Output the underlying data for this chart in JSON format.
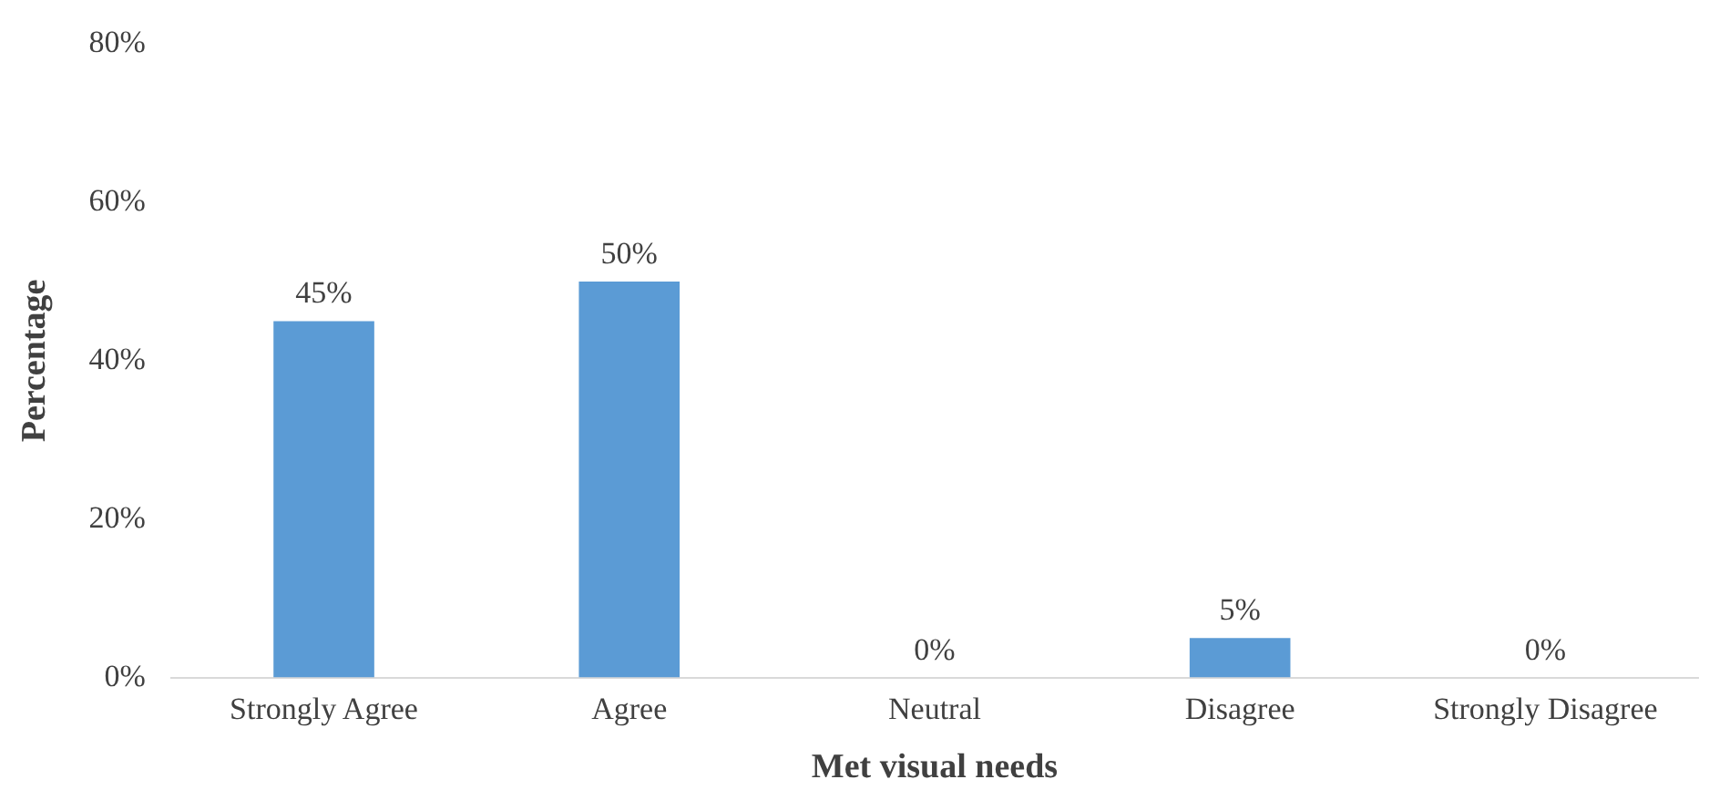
{
  "chart_data": {
    "type": "bar",
    "categories": [
      "Strongly Agree",
      "Agree",
      "Neutral",
      "Disagree",
      "Strongly Disagree"
    ],
    "values": [
      45,
      50,
      0,
      5,
      0
    ],
    "color": "#5b9bd5",
    "value_labels": [
      "45%",
      "50%",
      "0%",
      "5%",
      "0%"
    ],
    "xlabel": "Met visual needs",
    "ylabel": "Percentage",
    "ylim": [
      0,
      80
    ],
    "yticks": [
      {
        "value": 0,
        "label": "0%"
      },
      {
        "value": 20,
        "label": "20%"
      },
      {
        "value": 40,
        "label": "40%"
      },
      {
        "value": 60,
        "label": "60%"
      },
      {
        "value": 80,
        "label": "80%"
      }
    ],
    "grid": false,
    "legend": false
  }
}
